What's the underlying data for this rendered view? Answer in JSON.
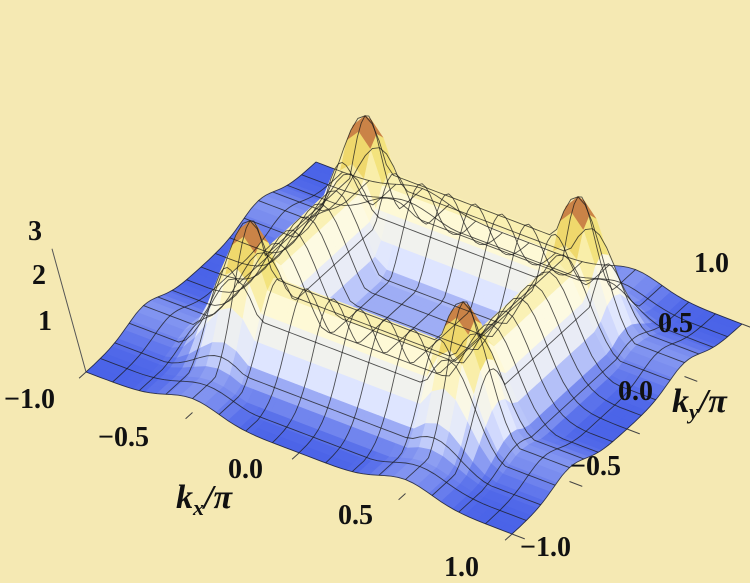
{
  "chart_data": {
    "type": "surface",
    "title": "",
    "x_axis": {
      "label": "k",
      "label_sub": "x",
      "label_suffix": "/π",
      "range": [
        -1.0,
        1.0
      ],
      "ticks": [
        "−1.0",
        "−0.5",
        "0.0",
        "0.5",
        "1.0"
      ]
    },
    "y_axis": {
      "label": "k",
      "label_sub": "y",
      "label_suffix": "/π",
      "range": [
        -1.0,
        1.0
      ],
      "ticks": [
        "−1.0",
        "−0.5",
        "0.0",
        "0.5",
        "1.0"
      ]
    },
    "z_axis": {
      "label": "",
      "range": [
        0,
        3
      ],
      "ticks": [
        "1",
        "2",
        "3"
      ]
    },
    "background_color": "#f5e9b3",
    "colormap": [
      "#4a63e8",
      "#dfe6ff",
      "#fffbe0",
      "#f2e070",
      "#a83224"
    ],
    "mesh_color": "#1a1a1a",
    "surface_description_values": {
      "grid_lines": 17,
      "peak_height": 3,
      "ridge_positions_kx": [
        -0.5,
        0.5
      ],
      "ridge_positions_ky": [
        -0.5,
        0.5
      ],
      "baseline": 0
    }
  }
}
